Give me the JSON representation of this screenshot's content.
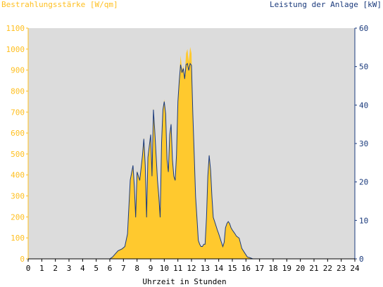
{
  "chart_data": {
    "type": "area",
    "ylabel_left": "Bestrahlungsstärke [W/qm]",
    "ylabel_right": "Leistung der Anlage [kW]",
    "xlabel": "Uhrzeit in Stunden",
    "x_ticks": [
      "0",
      "1",
      "2",
      "3",
      "4",
      "5",
      "6",
      "7",
      "8",
      "9",
      "10",
      "11",
      "12",
      "13",
      "14",
      "15",
      "16",
      "17",
      "18",
      "19",
      "20",
      "21",
      "22",
      "23",
      "24"
    ],
    "y_left_ticks": [
      "0",
      "100",
      "200",
      "300",
      "400",
      "500",
      "600",
      "700",
      "800",
      "900",
      "1000",
      "1100"
    ],
    "y_right_ticks": [
      "0",
      "10",
      "20",
      "30",
      "40",
      "50",
      "60"
    ],
    "y_left_range": [
      0,
      1100
    ],
    "y_right_range": [
      0,
      60
    ],
    "x_range": [
      0,
      24
    ],
    "grid": false,
    "colors": {
      "plot_bg": "#dcdcdc",
      "area": "#ffc92e",
      "line": "#1a3a7c",
      "left_axis": "#ffbf1f",
      "right_axis": "#1a3a7c"
    },
    "series": [
      {
        "name": "Bestrahlungsstärke",
        "axis": "left",
        "x": [
          0,
          6,
          6.2,
          6.4,
          6.6,
          6.9,
          7.1,
          7.3,
          7.5,
          7.7,
          7.8,
          7.9,
          8,
          8.1,
          8.2,
          8.4,
          8.5,
          8.6,
          8.7,
          8.8,
          9,
          9.1,
          9.2,
          9.3,
          9.4,
          9.5,
          9.6,
          9.7,
          9.8,
          9.9,
          10,
          10.1,
          10.2,
          10.3,
          10.4,
          10.5,
          10.6,
          10.7,
          10.8,
          10.9,
          11,
          11.1,
          11.2,
          11.3,
          11.4,
          11.5,
          11.6,
          11.7,
          11.8,
          11.9,
          12,
          12.1,
          12.2,
          12.3,
          12.4,
          12.5,
          12.6,
          12.7,
          12.8,
          12.9,
          13,
          13.1,
          13.2,
          13.3,
          13.4,
          13.5,
          13.6,
          13.7,
          13.8,
          13.9,
          14,
          14.1,
          14.2,
          14.3,
          14.4,
          14.5,
          14.6,
          14.7,
          14.8,
          14.9,
          15,
          15.1,
          15.2,
          15.3,
          15.5,
          15.7,
          15.9,
          16.1,
          16.3,
          16.5,
          16.7,
          16.9,
          17,
          17.2,
          17.4,
          17.6,
          17.8,
          18,
          18.2,
          18.4,
          18.6,
          18.8,
          19,
          19.2,
          24
        ],
        "values": [
          0,
          0,
          10,
          25,
          40,
          50,
          60,
          120,
          380,
          450,
          350,
          200,
          420,
          400,
          380,
          500,
          580,
          450,
          200,
          490,
          600,
          400,
          720,
          620,
          500,
          380,
          300,
          200,
          560,
          720,
          760,
          700,
          480,
          420,
          600,
          650,
          480,
          400,
          380,
          500,
          760,
          860,
          970,
          900,
          920,
          870,
          980,
          1000,
          940,
          1010,
          980,
          700,
          500,
          300,
          200,
          90,
          70,
          60,
          60,
          70,
          70,
          200,
          400,
          500,
          430,
          300,
          200,
          180,
          160,
          140,
          120,
          100,
          80,
          60,
          80,
          150,
          170,
          180,
          170,
          150,
          140,
          130,
          120,
          110,
          100,
          50,
          30,
          10,
          5,
          0,
          0,
          0,
          0,
          0,
          0,
          0,
          0,
          0,
          0,
          0,
          0,
          0,
          0,
          0,
          0
        ]
      },
      {
        "name": "Leistung der Anlage",
        "axis": "right",
        "x": [
          0,
          6,
          6.2,
          6.4,
          6.6,
          6.9,
          7.1,
          7.3,
          7.5,
          7.7,
          7.8,
          7.9,
          8,
          8.1,
          8.2,
          8.4,
          8.5,
          8.6,
          8.7,
          8.8,
          9,
          9.1,
          9.2,
          9.3,
          9.4,
          9.5,
          9.6,
          9.7,
          9.8,
          9.9,
          10,
          10.1,
          10.2,
          10.3,
          10.4,
          10.5,
          10.6,
          10.7,
          10.8,
          10.9,
          11,
          11.1,
          11.2,
          11.3,
          11.4,
          11.5,
          11.6,
          11.7,
          11.8,
          11.9,
          12,
          12.1,
          12.2,
          12.3,
          12.4,
          12.5,
          12.6,
          12.7,
          12.8,
          12.9,
          13,
          13.1,
          13.2,
          13.3,
          13.4,
          13.5,
          13.6,
          13.7,
          13.8,
          13.9,
          14,
          14.1,
          14.2,
          14.3,
          14.4,
          14.5,
          14.6,
          14.7,
          14.8,
          14.9,
          15,
          15.1,
          15.2,
          15.3,
          15.5,
          15.7,
          15.9,
          16.1,
          16.3,
          16.5,
          16.7,
          16.9,
          17,
          17.2,
          17.4,
          17.6,
          17.8,
          18,
          18.2,
          18.4,
          18.6,
          18.8,
          19,
          19.2,
          24
        ],
        "values": [
          0,
          0,
          0.5,
          1.3,
          2.1,
          2.6,
          3.2,
          6.5,
          20.5,
          24.3,
          18.9,
          10.8,
          22.6,
          21.5,
          20.4,
          27.0,
          31.2,
          24.3,
          10.8,
          26.4,
          32.3,
          21.5,
          38.8,
          33.4,
          27.0,
          20.4,
          16.2,
          10.8,
          30.2,
          38.8,
          40.9,
          37.7,
          25.9,
          22.6,
          32.3,
          35.0,
          25.9,
          21.5,
          20.4,
          27.0,
          40.9,
          46.3,
          50.5,
          48.4,
          49.5,
          46.8,
          50.5,
          50.8,
          49.0,
          50.8,
          50.3,
          37.7,
          26.9,
          16.2,
          10.8,
          4.8,
          3.8,
          3.2,
          3.2,
          3.8,
          3.8,
          10.8,
          21.5,
          26.9,
          23.1,
          16.2,
          10.8,
          9.7,
          8.6,
          7.5,
          6.5,
          5.4,
          4.3,
          3.2,
          4.3,
          8.1,
          9.2,
          9.7,
          9.2,
          8.1,
          7.5,
          7.0,
          6.5,
          5.9,
          5.4,
          2.7,
          1.6,
          0.5,
          0.3,
          0,
          0,
          0,
          0,
          0,
          0,
          0,
          0,
          0,
          0,
          0,
          0,
          0,
          0,
          0,
          0
        ]
      }
    ]
  }
}
